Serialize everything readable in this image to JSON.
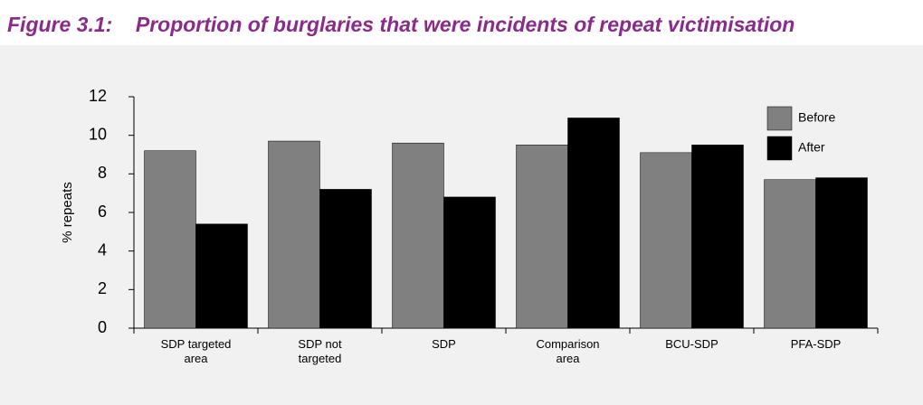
{
  "chart_data": {
    "type": "bar",
    "title": "Figure 3.1:    Proportion of burglaries that were incidents of repeat victimisation",
    "ylabel": "% repeats",
    "categories": [
      "SDP targeted area",
      "SDP not targeted",
      "SDP",
      "Comparison area",
      "BCU-SDP",
      "PFA-SDP"
    ],
    "series": [
      {
        "name": "Before",
        "color": "#808080",
        "values": [
          9.2,
          9.7,
          9.6,
          9.5,
          9.1,
          7.7
        ]
      },
      {
        "name": "After",
        "color": "#000000",
        "values": [
          5.4,
          7.2,
          6.8,
          10.9,
          9.5,
          7.8
        ]
      }
    ],
    "ylim": [
      0,
      12
    ],
    "yticks": [
      0,
      2,
      4,
      6,
      8,
      10,
      12
    ],
    "grid": false,
    "legend": "upper right"
  }
}
